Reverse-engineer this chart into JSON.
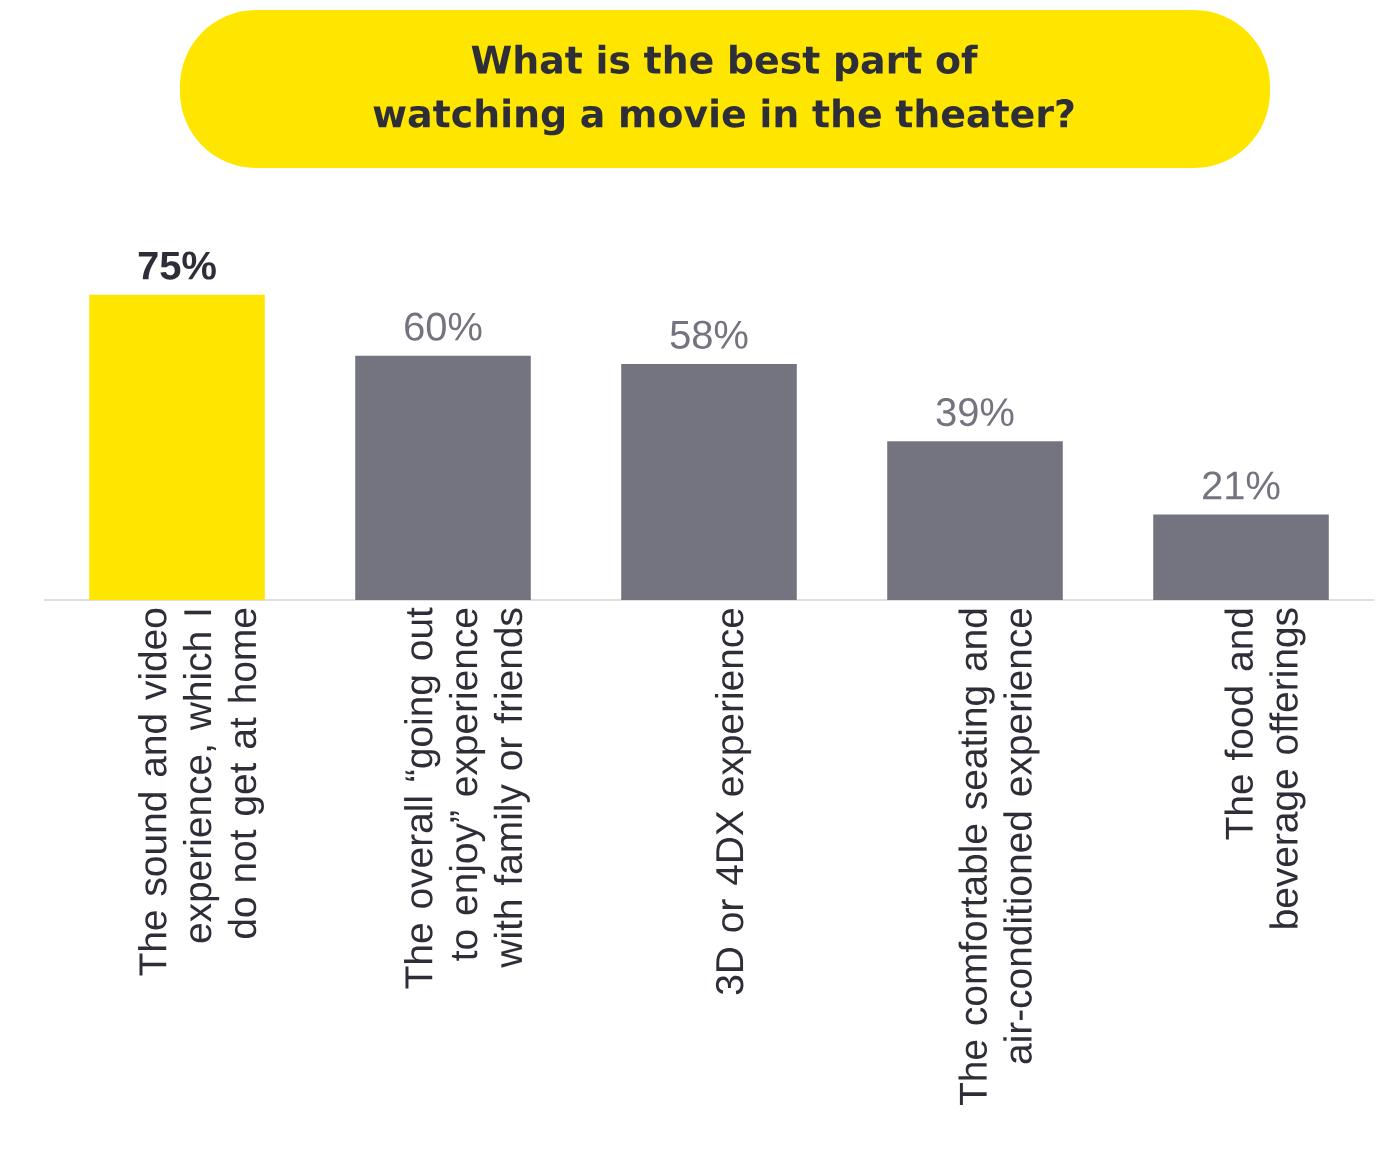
{
  "chart_data": {
    "type": "bar",
    "title": "What is the best part of watching a movie in the theater?",
    "categories": [
      "The sound and video experience, which I do not get at home",
      "The overall “going out to enjoy” experience with family or friends",
      "3D or 4DX experience",
      "The comfortable seating and air-conditioned experience",
      "The food and beverage offerings"
    ],
    "values": [
      75,
      60,
      58,
      39,
      21
    ],
    "colors": [
      "#ffe600",
      "#747480",
      "#747480",
      "#747480",
      "#747480"
    ],
    "value_labels": [
      "75%",
      "60%",
      "58%",
      "39%",
      "21%"
    ]
  }
}
